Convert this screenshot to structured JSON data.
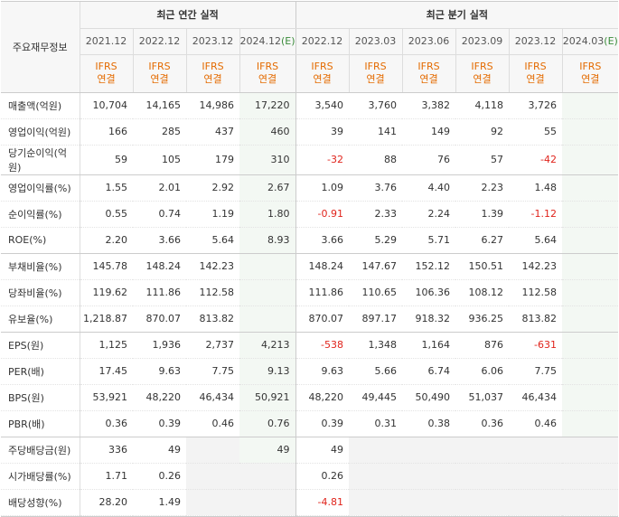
{
  "header": {
    "corner": "주요재무정보",
    "annual_title": "최근 연간 실적",
    "quarter_title": "최근 분기 실적",
    "standard_line1": "IFRS",
    "standard_line2": "연결",
    "annual_periods": [
      {
        "date": "2021.12",
        "flag": ""
      },
      {
        "date": "2022.12",
        "flag": ""
      },
      {
        "date": "2023.12",
        "flag": ""
      },
      {
        "date": "2024.12",
        "flag": "(E)"
      }
    ],
    "quarter_periods": [
      {
        "date": "2022.12",
        "flag": ""
      },
      {
        "date": "2023.03",
        "flag": ""
      },
      {
        "date": "2023.06",
        "flag": ""
      },
      {
        "date": "2023.09",
        "flag": ""
      },
      {
        "date": "2023.12",
        "flag": ""
      },
      {
        "date": "2024.03",
        "flag": "(E)"
      }
    ]
  },
  "rows": [
    {
      "label": "매출액(억원)",
      "annual": [
        "10,704",
        "14,165",
        "14,986",
        "17,220"
      ],
      "quarter": [
        "3,540",
        "3,760",
        "3,382",
        "4,118",
        "3,726",
        ""
      ]
    },
    {
      "label": "영업이익(억원)",
      "annual": [
        "166",
        "285",
        "437",
        "460"
      ],
      "quarter": [
        "39",
        "141",
        "149",
        "92",
        "55",
        ""
      ]
    },
    {
      "label": "당기순이익(억원)",
      "annual": [
        "59",
        "105",
        "179",
        "310"
      ],
      "quarter": [
        "-32",
        "88",
        "76",
        "57",
        "-42",
        ""
      ]
    },
    {
      "label": "영업이익률(%)",
      "annual": [
        "1.55",
        "2.01",
        "2.92",
        "2.67"
      ],
      "quarter": [
        "1.09",
        "3.76",
        "4.40",
        "2.23",
        "1.48",
        ""
      ]
    },
    {
      "label": "순이익률(%)",
      "annual": [
        "0.55",
        "0.74",
        "1.19",
        "1.80"
      ],
      "quarter": [
        "-0.91",
        "2.33",
        "2.24",
        "1.39",
        "-1.12",
        ""
      ]
    },
    {
      "label": "ROE(%)",
      "annual": [
        "2.20",
        "3.66",
        "5.64",
        "8.93"
      ],
      "quarter": [
        "3.66",
        "5.29",
        "5.71",
        "6.27",
        "5.64",
        ""
      ]
    },
    {
      "label": "부채비율(%)",
      "annual": [
        "145.78",
        "148.24",
        "142.23",
        ""
      ],
      "quarter": [
        "148.24",
        "147.67",
        "152.12",
        "150.51",
        "142.23",
        ""
      ]
    },
    {
      "label": "당좌비율(%)",
      "annual": [
        "119.62",
        "111.86",
        "112.58",
        ""
      ],
      "quarter": [
        "111.86",
        "110.65",
        "106.36",
        "108.12",
        "112.58",
        ""
      ]
    },
    {
      "label": "유보율(%)",
      "annual": [
        "1,218.87",
        "870.07",
        "813.82",
        ""
      ],
      "quarter": [
        "870.07",
        "897.17",
        "918.32",
        "936.25",
        "813.82",
        ""
      ]
    },
    {
      "label": "EPS(원)",
      "annual": [
        "1,125",
        "1,936",
        "2,737",
        "4,213"
      ],
      "quarter": [
        "-538",
        "1,348",
        "1,164",
        "876",
        "-631",
        ""
      ]
    },
    {
      "label": "PER(배)",
      "annual": [
        "17.45",
        "9.63",
        "7.75",
        "9.13"
      ],
      "quarter": [
        "9.63",
        "5.66",
        "6.74",
        "6.06",
        "7.75",
        ""
      ]
    },
    {
      "label": "BPS(원)",
      "annual": [
        "53,921",
        "48,220",
        "46,434",
        "50,921"
      ],
      "quarter": [
        "48,220",
        "49,445",
        "50,490",
        "51,037",
        "46,434",
        ""
      ]
    },
    {
      "label": "PBR(배)",
      "annual": [
        "0.36",
        "0.39",
        "0.46",
        "0.76"
      ],
      "quarter": [
        "0.39",
        "0.31",
        "0.38",
        "0.36",
        "0.46",
        ""
      ]
    },
    {
      "label": "주당배당금(원)",
      "annual": [
        "336",
        "49",
        "",
        "49"
      ],
      "quarter": [
        "49",
        "",
        "",
        "",
        "",
        ""
      ]
    },
    {
      "label": "시가배당률(%)",
      "annual": [
        "1.71",
        "0.26",
        "",
        ""
      ],
      "quarter": [
        "0.26",
        "",
        "",
        "",
        "",
        ""
      ]
    },
    {
      "label": "배당성향(%)",
      "annual": [
        "28.20",
        "1.49",
        "",
        ""
      ],
      "quarter": [
        "-4.81",
        "",
        "",
        "",
        "",
        ""
      ]
    }
  ],
  "colors": {
    "ifrs": "#e46b00",
    "negative": "#e0241c",
    "estimate_bg": "#f3f8f3",
    "estimate_flag": "#3a8b3a",
    "empty_bg": "#f3f3f3"
  }
}
